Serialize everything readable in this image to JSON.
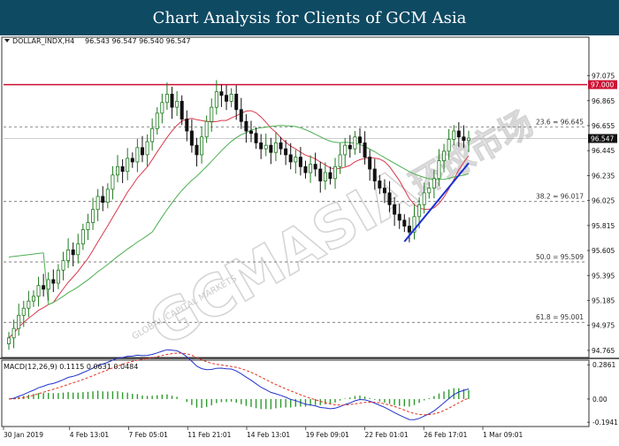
{
  "banner": {
    "title": "Chart Analysis for Clients of GCM Asia"
  },
  "watermark": {
    "main": "GCMASIA",
    "sub": "GLOBAL CAPITAL MARKETS",
    "cn": "环球市场"
  },
  "colors": {
    "background": "#ffffff",
    "banner": "#0f4a63",
    "bull": "#1e7a1e",
    "bear": "#111111",
    "ma_fast": "#d9384b",
    "ma_slow": "#4caf50",
    "resistance": "#cc1133",
    "trendline": "#1a2fd6",
    "macd_line": "#2233cc",
    "signal_line": "#e23322",
    "hist": "#2e9b2e"
  },
  "chart_data": {
    "type": "candlestick",
    "symbol_label": "DOLLAR_INDX,H4",
    "ohlc_label": "96.543 96.547 96.540 96.547",
    "price_axis_ticks": [
      "97.075",
      "96.865",
      "96.655",
      "96.445",
      "96.235",
      "96.025",
      "95.815",
      "95.605",
      "95.395",
      "95.185",
      "94.975",
      "94.765"
    ],
    "price_range": [
      94.72,
      97.28
    ],
    "time_labels": [
      "30 Jan 2019",
      "4 Feb 13:01",
      "7 Feb 05:01",
      "11 Feb 21:01",
      "14 Feb 13:01",
      "19 Feb 09:01",
      "22 Feb 01:01",
      "26 Feb 17:01",
      "1 Mar 09:01"
    ],
    "closes": [
      94.87,
      94.95,
      95.06,
      95.12,
      95.18,
      95.22,
      95.31,
      95.28,
      95.36,
      95.33,
      95.44,
      95.52,
      95.61,
      95.57,
      95.66,
      95.78,
      95.84,
      95.95,
      96.06,
      96.01,
      96.12,
      96.24,
      96.31,
      96.27,
      96.38,
      96.35,
      96.47,
      96.41,
      96.52,
      96.63,
      96.76,
      96.85,
      96.92,
      96.81,
      96.86,
      96.71,
      96.61,
      96.49,
      96.41,
      96.56,
      96.69,
      96.81,
      96.94,
      96.91,
      96.86,
      96.92,
      96.79,
      96.69,
      96.61,
      96.59,
      96.51,
      96.46,
      96.49,
      96.43,
      96.51,
      96.46,
      96.41,
      96.35,
      96.39,
      96.31,
      96.26,
      96.33,
      96.29,
      96.19,
      96.26,
      96.21,
      96.31,
      96.41,
      96.49,
      96.46,
      96.56,
      96.51,
      96.39,
      96.29,
      96.19,
      96.13,
      96.09,
      95.99,
      95.91,
      95.86,
      95.81,
      95.76,
      95.89,
      95.99,
      96.09,
      96.13,
      96.21,
      96.36,
      96.44,
      96.54,
      96.61,
      96.56,
      96.53,
      96.55
    ],
    "levels": [
      {
        "label": "97.000",
        "value": 97.0,
        "type": "resistance"
      },
      {
        "label": "23.6 = 96.645",
        "value": 96.645,
        "type": "fib"
      },
      {
        "label": "38.2 = 96.017",
        "value": 96.017,
        "type": "fib"
      },
      {
        "label": "50.0 = 95.509",
        "value": 95.509,
        "type": "fib"
      },
      {
        "label": "61.8 = 95.001",
        "value": 95.001,
        "type": "fib"
      }
    ],
    "current_price_label": "96.547",
    "trendline": {
      "from": {
        "index": 80,
        "price": 95.68
      },
      "to": {
        "index": 93,
        "price": 96.34
      }
    },
    "macd": {
      "label": "MACD(12,26,9) 0.1115 0.0631 0.0484",
      "axis_ticks": [
        "0.2861",
        "0.00",
        "-0.1941"
      ],
      "range": [
        -0.215,
        0.31
      ]
    }
  }
}
